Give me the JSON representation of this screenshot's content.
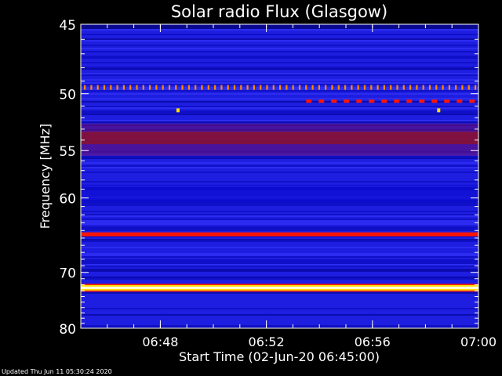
{
  "chart_data": {
    "type": "heatmap",
    "title": "Solar radio Flux (Glasgow)",
    "xlabel": "Start Time (02-Jun-20 06:45:00)",
    "ylabel": "Frequency [MHz]",
    "x_tick_labels": [
      "06:48",
      "06:52",
      "06:56",
      "07:00"
    ],
    "y_tick_labels": [
      "45",
      "50",
      "55",
      "60",
      "70",
      "80"
    ],
    "x_range": [
      "06:45:00",
      "07:00:00"
    ],
    "y_range_mhz": [
      45,
      80
    ],
    "y_scale": "reciprocal",
    "colormap": "blue-red-yellow-white",
    "bands": [
      {
        "freq_mhz": 49.5,
        "intensity": "orange",
        "pattern": "dotted"
      },
      {
        "freq_mhz": 50.6,
        "intensity": "red",
        "pattern": "dashed",
        "from": "06:53:30"
      },
      {
        "freq_mhz": 51.0,
        "intensity": "yellow",
        "pattern": "spot"
      },
      {
        "freq_mhz": 53.8,
        "intensity": "dark red",
        "pattern": "continuous"
      },
      {
        "freq_mhz": 64.5,
        "intensity": "red",
        "pattern": "continuous"
      },
      {
        "freq_mhz": 72.5,
        "intensity": "white-yellow",
        "pattern": "continuous"
      }
    ],
    "colors": {
      "background": "#000000",
      "base": "#1e1ee0",
      "red": "#ff1400",
      "yellow": "#ffe000",
      "white": "#ffffe0"
    }
  },
  "footer": {
    "updated": "Updated Thu Jun 11 05:30:24 2020"
  }
}
